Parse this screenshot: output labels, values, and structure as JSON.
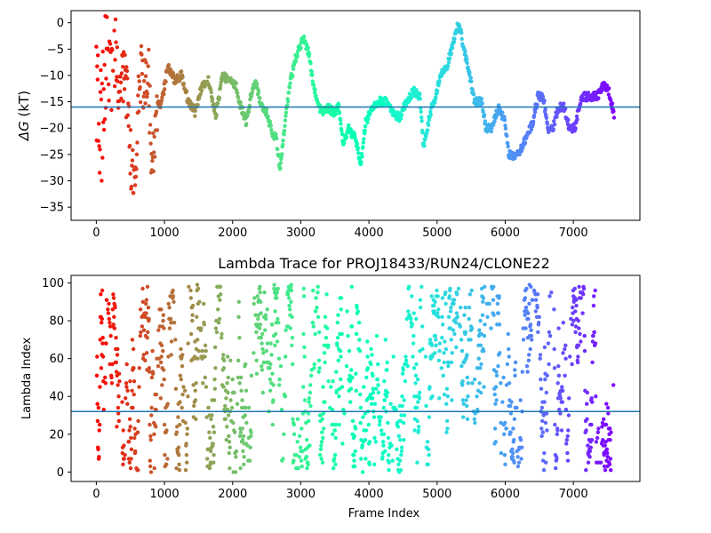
{
  "chart_data": [
    {
      "type": "scatter",
      "xlim": [
        -370,
        7976
      ],
      "ylim": [
        -37.5,
        2.3
      ],
      "xticks": [
        0,
        1000,
        2000,
        3000,
        4000,
        5000,
        6000,
        7000
      ],
      "xtick_labels": [
        "0",
        "1000",
        "2000",
        "3000",
        "4000",
        "5000",
        "6000",
        "7000"
      ],
      "yticks": [
        0,
        -5,
        -10,
        -15,
        -20,
        -25,
        -30,
        -35
      ],
      "ytick_labels": [
        "0",
        "−5",
        "−10",
        "−15",
        "−20",
        "−25",
        "−30",
        "−35"
      ],
      "ylabel_symbol": "ΔG",
      "ylabel_unit": "(kT)",
      "hline": -16,
      "colormap": "rainbow (red at frame 0 → violet at last frame)",
      "points_note": "~7600 frames, one point per frame; series estimated from the plot",
      "series": [
        {
          "x_range": [
            0,
            7600
          ],
          "profile": [
            [
              0,
              -10
            ],
            [
              60,
              -22
            ],
            [
              120,
              -10
            ],
            [
              200,
              -4
            ],
            [
              280,
              -8
            ],
            [
              350,
              -14
            ],
            [
              420,
              -9
            ],
            [
              500,
              -25
            ],
            [
              560,
              -30
            ],
            [
              640,
              -10
            ],
            [
              700,
              -13
            ],
            [
              760,
              -8
            ],
            [
              820,
              -30
            ],
            [
              880,
              -15
            ],
            [
              950,
              -16
            ],
            [
              1050,
              -8
            ],
            [
              1150,
              -11
            ],
            [
              1250,
              -10
            ],
            [
              1350,
              -15
            ],
            [
              1450,
              -17
            ],
            [
              1550,
              -12
            ],
            [
              1650,
              -11
            ],
            [
              1750,
              -18
            ],
            [
              1850,
              -10
            ],
            [
              1950,
              -11
            ],
            [
              2050,
              -12
            ],
            [
              2100,
              -15
            ],
            [
              2200,
              -19
            ],
            [
              2280,
              -13
            ],
            [
              2340,
              -11
            ],
            [
              2420,
              -16
            ],
            [
              2500,
              -17
            ],
            [
              2580,
              -21
            ],
            [
              2640,
              -22
            ],
            [
              2700,
              -28
            ],
            [
              2760,
              -20
            ],
            [
              2850,
              -11
            ],
            [
              2920,
              -7
            ],
            [
              3000,
              -4
            ],
            [
              3050,
              -3
            ],
            [
              3120,
              -6
            ],
            [
              3200,
              -13
            ],
            [
              3300,
              -17
            ],
            [
              3400,
              -16
            ],
            [
              3480,
              -17
            ],
            [
              3560,
              -16
            ],
            [
              3620,
              -23
            ],
            [
              3700,
              -20
            ],
            [
              3800,
              -22
            ],
            [
              3880,
              -27
            ],
            [
              3950,
              -19
            ],
            [
              4050,
              -16
            ],
            [
              4150,
              -15
            ],
            [
              4250,
              -15
            ],
            [
              4350,
              -17
            ],
            [
              4450,
              -18
            ],
            [
              4550,
              -15
            ],
            [
              4650,
              -13
            ],
            [
              4750,
              -14
            ],
            [
              4800,
              -24
            ],
            [
              4900,
              -17
            ],
            [
              4980,
              -14
            ],
            [
              5050,
              -10
            ],
            [
              5150,
              -8
            ],
            [
              5250,
              -3
            ],
            [
              5320,
              0
            ],
            [
              5380,
              -4
            ],
            [
              5450,
              -8
            ],
            [
              5550,
              -15
            ],
            [
              5650,
              -15
            ],
            [
              5720,
              -20
            ],
            [
              5800,
              -20
            ],
            [
              5900,
              -16
            ],
            [
              6000,
              -19
            ],
            [
              6050,
              -25
            ],
            [
              6120,
              -25.5
            ],
            [
              6200,
              -25
            ],
            [
              6300,
              -22
            ],
            [
              6400,
              -19
            ],
            [
              6480,
              -14
            ],
            [
              6560,
              -14
            ],
            [
              6620,
              -20
            ],
            [
              6700,
              -20
            ],
            [
              6780,
              -16
            ],
            [
              6860,
              -16
            ],
            [
              6940,
              -20
            ],
            [
              7020,
              -20
            ],
            [
              7120,
              -14
            ],
            [
              7250,
              -14
            ],
            [
              7350,
              -14
            ],
            [
              7440,
              -12
            ],
            [
              7520,
              -13
            ],
            [
              7600,
              -17.5
            ]
          ]
        }
      ]
    },
    {
      "type": "scatter",
      "title": "Lambda Trace for PROJ18433/RUN24/CLONE22",
      "xlabel": "Frame Index",
      "ylabel": "Lambda Index",
      "xlim": [
        -370,
        7976
      ],
      "ylim": [
        -5,
        104
      ],
      "xticks": [
        0,
        1000,
        2000,
        3000,
        4000,
        5000,
        6000,
        7000
      ],
      "xtick_labels": [
        "0",
        "1000",
        "2000",
        "3000",
        "4000",
        "5000",
        "6000",
        "7000"
      ],
      "yticks": [
        0,
        20,
        40,
        60,
        80,
        100
      ],
      "ytick_labels": [
        "0",
        "20",
        "40",
        "60",
        "80",
        "100"
      ],
      "hline": 32,
      "colormap": "rainbow (red at frame 0 → violet at last frame)",
      "points_note": "~7600 frames; lambda index in 0–99 per frame, estimated distribution",
      "series": [
        {
          "x_range": [
            0,
            7600
          ],
          "y_range": [
            0,
            99
          ]
        }
      ]
    }
  ]
}
